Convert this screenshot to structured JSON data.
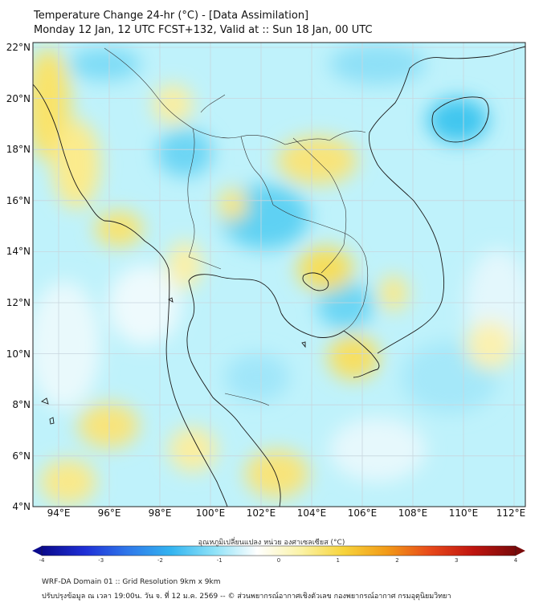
{
  "header": {
    "title_line1": "Temperature Change 24-hr (°C) - [Data Assimilation]",
    "title_line2": "Monday 12 Jan, 12 UTC FCST+132, Valid at :: Sun 18 Jan, 00 UTC"
  },
  "map": {
    "lat_labels": [
      "22°N",
      "20°N",
      "18°N",
      "16°N",
      "14°N",
      "12°N",
      "10°N",
      "8°N",
      "6°N",
      "4°N"
    ],
    "lon_labels": [
      "94°E",
      "96°E",
      "98°E",
      "100°E",
      "102°E",
      "104°E",
      "106°E",
      "108°E",
      "110°E",
      "112°E"
    ],
    "colors": {
      "ocean_base": "#bff2fb",
      "warm": "#fbe97a",
      "cool": "#52cdf2",
      "coast": "#1a1a1a",
      "grid": "#c8d6de"
    }
  },
  "colorbar": {
    "title": "อุณหภูมิเปลี่ยนแปลง หน่วย องศาเซลเซียส (°C)",
    "ticks": [
      "-4",
      "-3",
      "-2",
      "-1",
      "0",
      "1",
      "2",
      "3",
      "4"
    ],
    "min": -4,
    "max": 4,
    "colors": [
      "#0a0a8c",
      "#1f2fd6",
      "#2f78ea",
      "#33b4f0",
      "#8ee2f8",
      "#ffffff",
      "#fbf3a8",
      "#f7d43c",
      "#f29b18",
      "#e84a1a",
      "#c0150f",
      "#7a0a0a"
    ]
  },
  "footer": {
    "line1": "WRF-DA Domain 01 :: Grid Resolution 9km x 9km",
    "line2": "ปรับปรุงข้อมูล ณ เวลา 19:00น. วัน จ. ที่ 12 ม.ค. 2569 -- © ส่วนพยากรณ์อากาศเชิงตัวเลข กองพยากรณ์อากาศ กรมอุตุนิยมวิทยา"
  }
}
